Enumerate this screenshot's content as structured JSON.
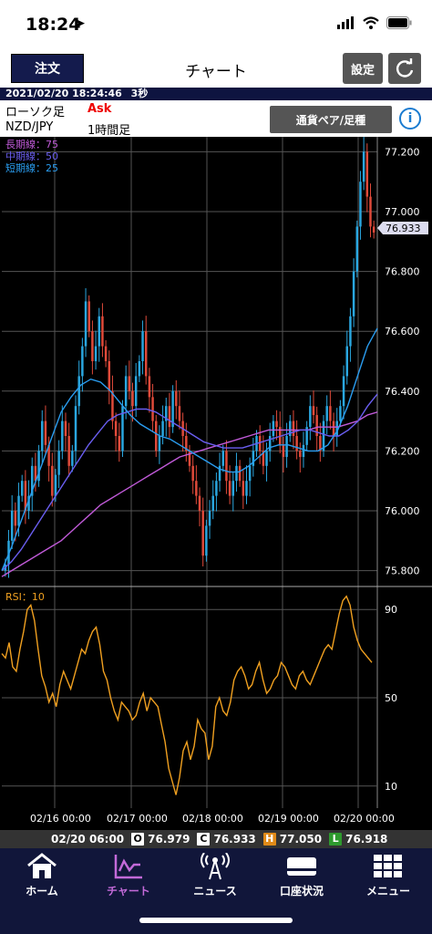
{
  "status_bar": {
    "time": "18:24"
  },
  "header": {
    "order_button": "注文",
    "title": "チャート",
    "settings_button": "設定"
  },
  "date_bar": {
    "datetime": "2021/02/20 18:24:46",
    "interval": "3秒"
  },
  "info": {
    "chart_type": "ローソク足",
    "price_type": "Ask",
    "pair": "NZD/JPY",
    "timeframe": "1時間足",
    "pair_button": "通貨ペア/足種"
  },
  "chart": {
    "legend": {
      "long": "長期線：75",
      "mid": "中期線：50",
      "short": "短期線：25"
    },
    "current_price": "76.933",
    "y_ticks": [
      "77.200",
      "77.000",
      "76.800",
      "76.600",
      "76.400",
      "76.200",
      "76.000",
      "75.800"
    ],
    "rsi_label": "RSI：10",
    "rsi_ticks": [
      "90",
      "50",
      "10"
    ],
    "x_ticks": [
      "02/16 00:00",
      "02/17 00:00",
      "02/18 00:00",
      "02/19 00:00",
      "02/20 00:00"
    ],
    "colors": {
      "up": "#2aa7e0",
      "down": "#e04a3a",
      "long_ma": "#c05ad8",
      "mid_ma": "#6a5ef0",
      "short_ma": "#2a9df0",
      "rsi": "#f0a020"
    }
  },
  "chart_data": {
    "type": "candlestick",
    "ylim": [
      75.75,
      77.25
    ],
    "yticks": [
      77.2,
      77.0,
      76.8,
      76.6,
      76.4,
      76.2,
      76.0,
      75.8
    ],
    "current": 76.933,
    "close_path": [
      75.82,
      75.9,
      76.0,
      75.95,
      76.05,
      76.1,
      76.0,
      76.05,
      76.15,
      76.1,
      76.2,
      76.3,
      76.22,
      76.15,
      76.05,
      76.12,
      76.2,
      76.3,
      76.25,
      76.15,
      76.2,
      76.35,
      76.45,
      76.55,
      76.7,
      76.6,
      76.5,
      76.55,
      76.65,
      76.55,
      76.5,
      76.4,
      76.3,
      76.25,
      76.2,
      76.35,
      76.45,
      76.4,
      76.35,
      76.45,
      76.5,
      76.6,
      76.45,
      76.38,
      76.3,
      76.2,
      76.25,
      76.3,
      76.35,
      76.28,
      76.4,
      76.35,
      76.3,
      76.25,
      76.2,
      76.15,
      76.1,
      76.05,
      76.0,
      75.85,
      75.95,
      76.0,
      76.05,
      76.1,
      76.15,
      76.2,
      76.1,
      76.05,
      76.1,
      76.15,
      76.1,
      76.05,
      76.1,
      76.15,
      76.2,
      76.25,
      76.2,
      76.15,
      76.2,
      76.25,
      76.3,
      76.28,
      76.22,
      76.18,
      76.25,
      76.3,
      76.25,
      76.2,
      76.18,
      76.22,
      76.28,
      76.35,
      76.32,
      76.25,
      76.2,
      76.3,
      76.35,
      76.3,
      76.25,
      76.3,
      76.35,
      76.45,
      76.55,
      76.65,
      76.8,
      76.95,
      77.1,
      77.2,
      77.05,
      76.95,
      76.93
    ],
    "ma_long": [
      75.78,
      75.8,
      75.82,
      75.84,
      75.86,
      75.88,
      75.9,
      75.93,
      75.96,
      75.99,
      76.02,
      76.04,
      76.06,
      76.08,
      76.1,
      76.12,
      76.14,
      76.16,
      76.18,
      76.19,
      76.2,
      76.21,
      76.22,
      76.23,
      76.24,
      76.25,
      76.26,
      76.27,
      76.27,
      76.27,
      76.27,
      76.27,
      76.28,
      76.28,
      76.28,
      76.29,
      76.3,
      76.32,
      76.33
    ],
    "ma_mid": [
      75.8,
      75.83,
      75.87,
      75.92,
      75.97,
      76.02,
      76.07,
      76.12,
      76.17,
      76.22,
      76.26,
      76.3,
      76.32,
      76.33,
      76.34,
      76.34,
      76.33,
      76.31,
      76.29,
      76.27,
      76.25,
      76.23,
      76.22,
      76.21,
      76.21,
      76.21,
      76.22,
      76.23,
      76.24,
      76.25,
      76.26,
      76.27,
      76.27,
      76.26,
      76.25,
      76.25,
      76.27,
      76.3,
      76.35,
      76.39
    ],
    "ma_short": [
      75.8,
      75.88,
      75.97,
      76.06,
      76.15,
      76.24,
      76.33,
      76.38,
      76.42,
      76.44,
      76.43,
      76.4,
      76.36,
      76.32,
      76.29,
      76.27,
      76.25,
      76.24,
      76.22,
      76.2,
      76.18,
      76.16,
      76.14,
      76.13,
      76.13,
      76.15,
      76.18,
      76.21,
      76.22,
      76.22,
      76.21,
      76.2,
      76.2,
      76.22,
      76.27,
      76.35,
      76.45,
      76.55,
      76.61
    ],
    "rsi": [
      70,
      68,
      75,
      64,
      62,
      72,
      80,
      90,
      92,
      85,
      72,
      60,
      55,
      48,
      52,
      46,
      56,
      62,
      58,
      54,
      60,
      66,
      72,
      70,
      76,
      80,
      82,
      74,
      62,
      58,
      50,
      44,
      40,
      48,
      46,
      44,
      40,
      42,
      48,
      52,
      44,
      50,
      48,
      46,
      38,
      30,
      18,
      12,
      6,
      14,
      26,
      30,
      22,
      28,
      40,
      36,
      34,
      22,
      28,
      46,
      50,
      44,
      42,
      48,
      58,
      62,
      64,
      60,
      54,
      56,
      62,
      66,
      58,
      52,
      54,
      58,
      60,
      66,
      64,
      60,
      56,
      54,
      60,
      62,
      58,
      56,
      60,
      64,
      68,
      72,
      74,
      72,
      80,
      88,
      94,
      96,
      92,
      82,
      76,
      72,
      70,
      68,
      66
    ]
  },
  "ohlc": {
    "datetime": "02/20 06:00",
    "open_label": "O",
    "open": "76.979",
    "close_label": "C",
    "close": "76.933",
    "high_label": "H",
    "high": "77.050",
    "low_label": "L",
    "low": "76.918"
  },
  "tabs": [
    {
      "label": "ホーム",
      "icon": "home-icon"
    },
    {
      "label": "チャート",
      "icon": "chart-icon"
    },
    {
      "label": "ニュース",
      "icon": "news-icon"
    },
    {
      "label": "口座状況",
      "icon": "account-icon"
    },
    {
      "label": "メニュー",
      "icon": "menu-icon"
    }
  ]
}
